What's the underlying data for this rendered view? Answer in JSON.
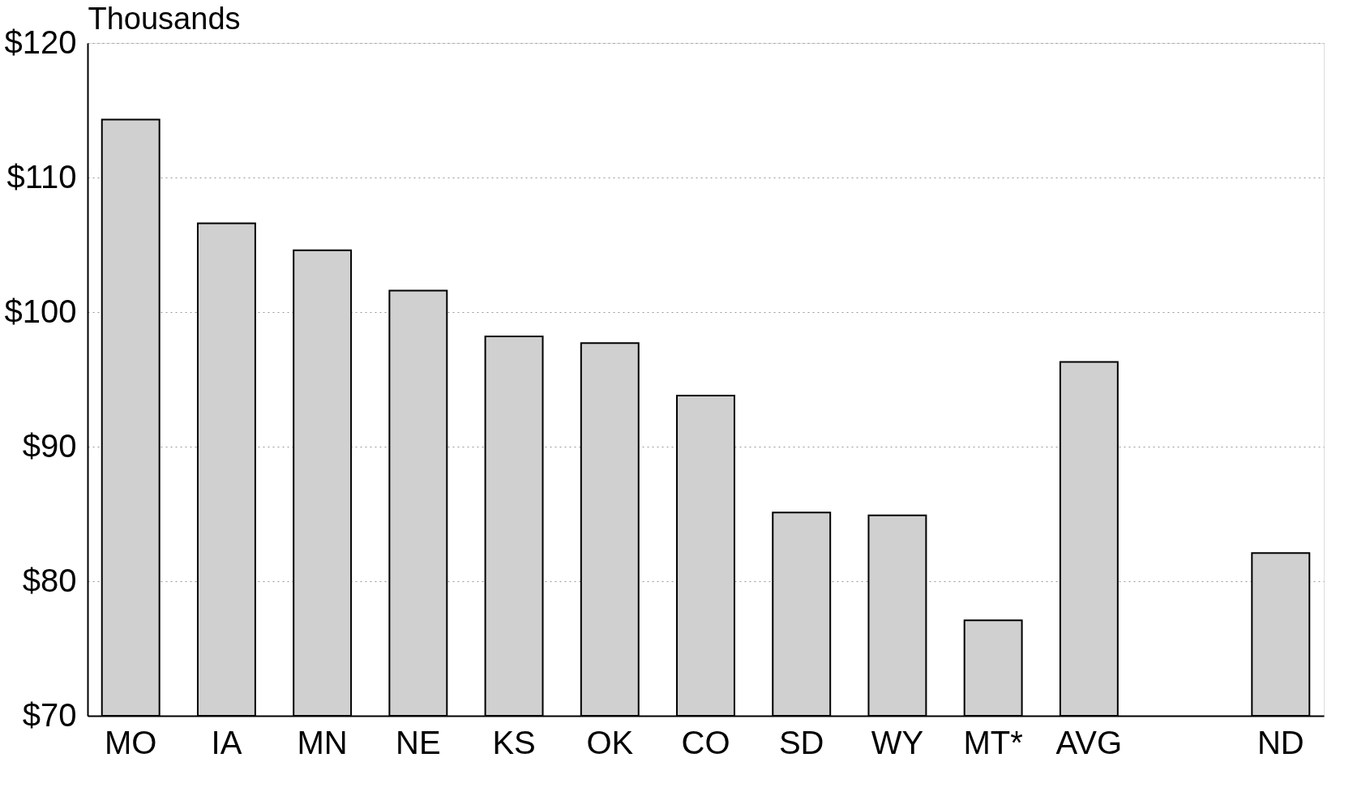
{
  "chart_data": {
    "type": "bar",
    "ylabel": "Thousands",
    "categories": [
      "MO",
      "IA",
      "MN",
      "NE",
      "KS",
      "OK",
      "CO",
      "SD",
      "WY",
      "MT*",
      "AVG",
      null,
      "ND"
    ],
    "values": [
      114.3,
      106.6,
      104.6,
      101.6,
      98.2,
      97.7,
      93.8,
      85.1,
      84.9,
      77.1,
      96.3,
      null,
      82.1
    ],
    "color": "#d0d0d0",
    "ylim": [
      70,
      120
    ],
    "yticks": [
      {
        "value": 70,
        "label": "$70"
      },
      {
        "value": 80,
        "label": "$80"
      },
      {
        "value": 90,
        "label": "$90"
      },
      {
        "value": 100,
        "label": "$100"
      },
      {
        "value": 110,
        "label": "$110"
      },
      {
        "value": 120,
        "label": "$120"
      }
    ],
    "grid": "y"
  }
}
